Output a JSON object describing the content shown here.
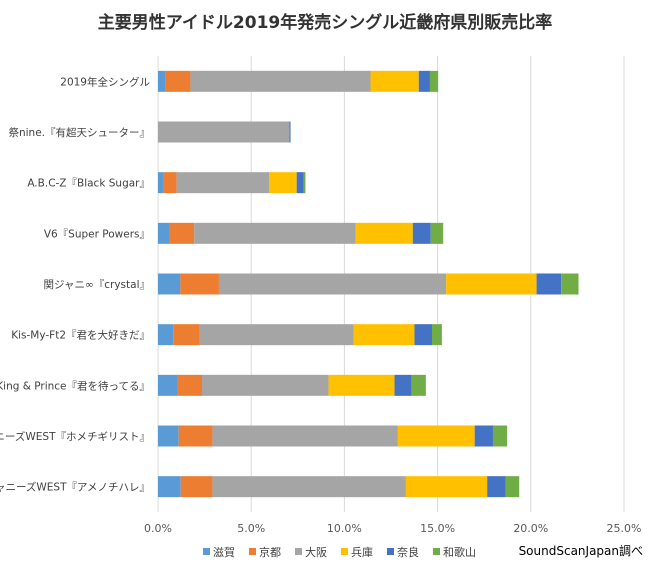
{
  "chart_data": {
    "type": "bar",
    "orientation": "horizontal",
    "stacked": true,
    "title": "主要男性アイドル2019年発売シングル近畿府県別販売比率",
    "xlabel": "",
    "ylabel": "",
    "xlim": [
      0,
      25
    ],
    "x_ticks": [
      "0.0%",
      "5.0%",
      "10.0%",
      "15.0%",
      "20.0%",
      "25.0%"
    ],
    "grid": "vertical",
    "legend_position": "bottom",
    "categories": [
      "2019年全シングル",
      "祭nine.『有超天シューター』",
      "A.B.C-Z『Black Sugar』",
      "V6『Super Powers』",
      "関ジャニ∞『crystal』",
      "Kis-My-Ft2『君を大好きだ』",
      "King & Prince『君を待ってる』",
      "ジャニーズWEST『ホメチギリスト』",
      "ジャニーズWEST『アメノチハレ』"
    ],
    "series": [
      {
        "name": "滋賀",
        "color": "#5b9bd5",
        "values": [
          0.42,
          0,
          0.27,
          0.62,
          1.2,
          0.82,
          1.02,
          1.11,
          1.22
        ]
      },
      {
        "name": "京都",
        "color": "#ed7d31",
        "values": [
          1.32,
          0,
          0.73,
          1.32,
          2.07,
          1.41,
          1.34,
          1.81,
          1.7
        ]
      },
      {
        "name": "大阪",
        "color": "#a5a5a5",
        "values": [
          9.66,
          7.05,
          4.97,
          8.66,
          12.19,
          8.26,
          6.79,
          9.95,
          10.38
        ]
      },
      {
        "name": "兵庫",
        "color": "#ffc000",
        "values": [
          2.59,
          0,
          1.47,
          3.07,
          4.85,
          3.27,
          3.54,
          4.12,
          4.36
        ]
      },
      {
        "name": "奈良",
        "color": "#4472c4",
        "values": [
          0.6,
          0.06,
          0.38,
          0.96,
          1.32,
          0.94,
          0.92,
          0.98,
          0.98
        ]
      },
      {
        "name": "和歌山",
        "color": "#70ad47",
        "values": [
          0.44,
          0,
          0.09,
          0.67,
          0.93,
          0.53,
          0.76,
          0.76,
          0.74
        ]
      }
    ]
  },
  "source_note": "SoundScanJapan調べ"
}
